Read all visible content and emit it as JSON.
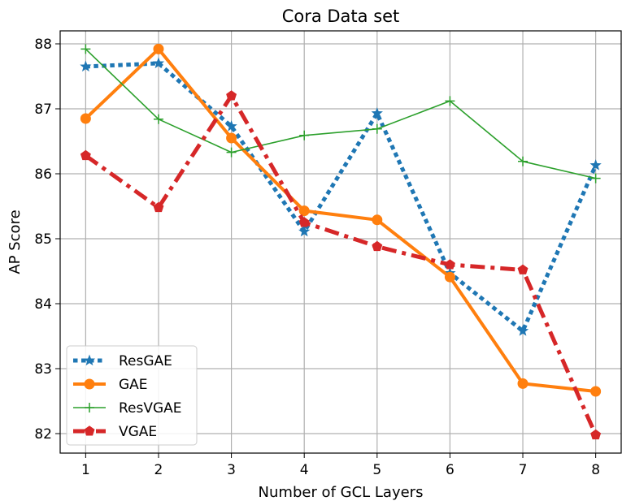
{
  "chart_data": {
    "type": "line",
    "title": "Cora Data set",
    "xlabel": "Number of GCL Layers",
    "ylabel": "AP Score",
    "x": [
      1,
      2,
      3,
      4,
      5,
      6,
      7,
      8
    ],
    "xlim": [
      0.65,
      8.35
    ],
    "ylim": [
      81.7,
      88.2
    ],
    "yticks": [
      82,
      83,
      84,
      85,
      86,
      87,
      88
    ],
    "grid": true,
    "legend_position": "lower-left",
    "series": [
      {
        "name": "ResGAE",
        "values": [
          87.65,
          87.7,
          86.73,
          85.11,
          86.93,
          84.47,
          83.58,
          86.13
        ],
        "color": "#1f77b4",
        "line_style": "dotted",
        "marker": "star"
      },
      {
        "name": "GAE",
        "values": [
          86.85,
          87.92,
          86.55,
          85.43,
          85.29,
          84.41,
          82.77,
          82.65
        ],
        "color": "#ff7f0e",
        "line_style": "solid",
        "marker": "circle"
      },
      {
        "name": "ResVGAE",
        "values": [
          87.92,
          86.84,
          86.33,
          86.59,
          86.69,
          87.12,
          86.19,
          85.93
        ],
        "color": "#2ca02c",
        "line_style": "solid",
        "marker": "plus"
      },
      {
        "name": "VGAE",
        "values": [
          86.28,
          85.48,
          87.2,
          85.25,
          84.88,
          84.6,
          84.52,
          81.98
        ],
        "color": "#d62728",
        "line_style": "dashdot",
        "marker": "pentagon"
      }
    ]
  }
}
